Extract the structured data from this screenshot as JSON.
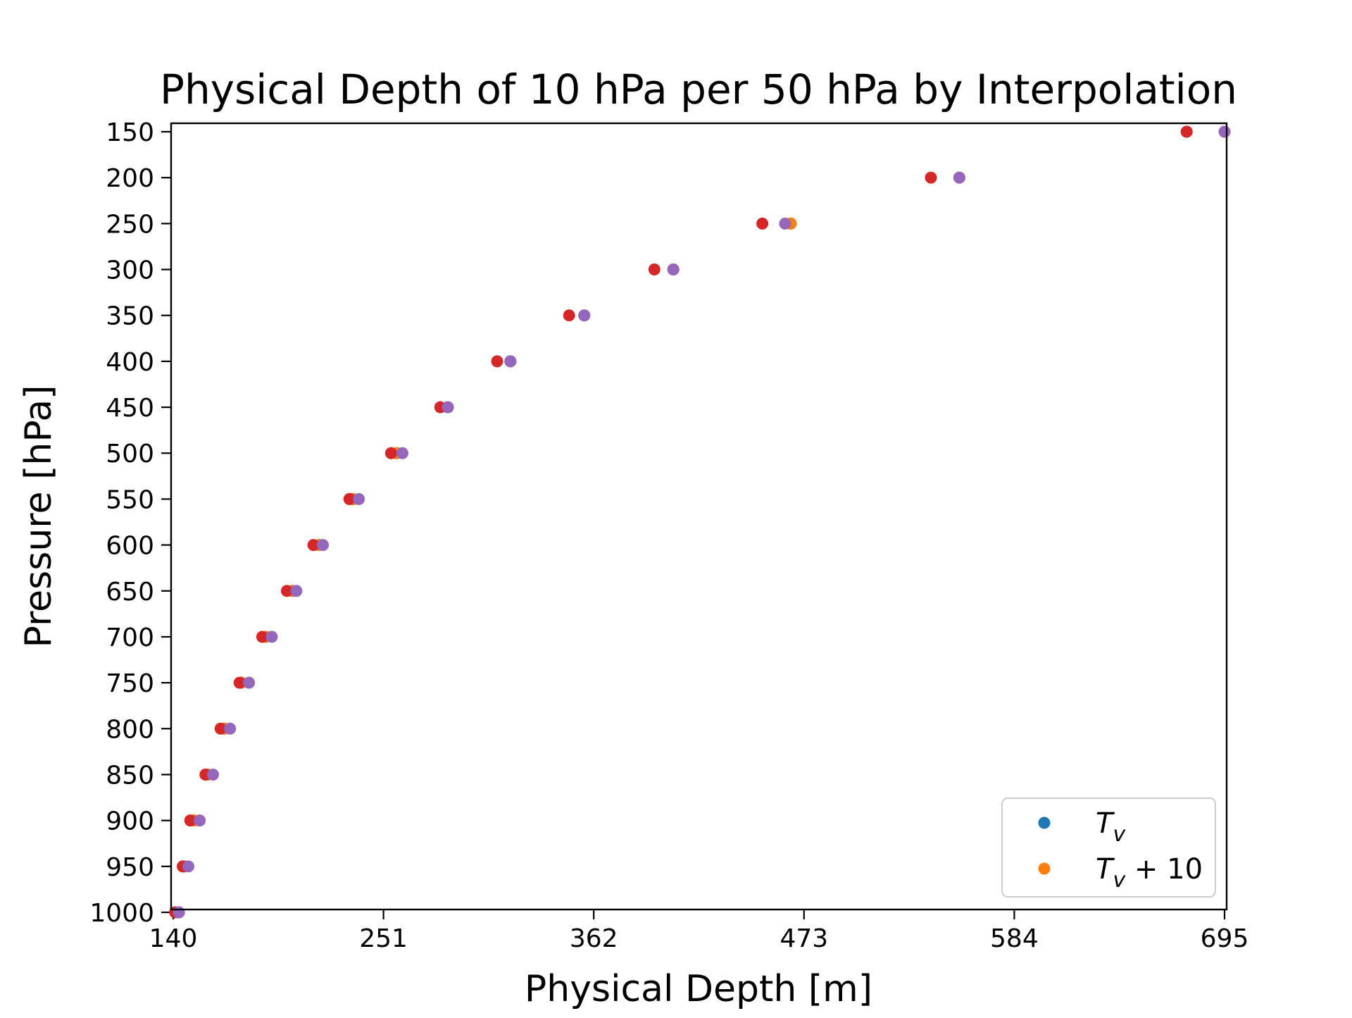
{
  "chart_data": {
    "type": "scatter",
    "title": "Physical Depth of 10 hPa per 50 hPa by Interpolation",
    "xlabel": "Physical Depth [m]",
    "ylabel": "Pressure [hPa]",
    "xlim": [
      140,
      695
    ],
    "ylim": [
      1000,
      150
    ],
    "y_inverted": true,
    "x_ticks": [
      "140",
      "251",
      "362",
      "473",
      "584",
      "695"
    ],
    "y_ticks": [
      "150",
      "200",
      "250",
      "300",
      "350",
      "400",
      "450",
      "500",
      "550",
      "600",
      "650",
      "700",
      "750",
      "800",
      "850",
      "900",
      "950",
      "1000"
    ],
    "pressure": [
      150,
      200,
      250,
      300,
      350,
      400,
      450,
      500,
      550,
      600,
      650,
      700,
      750,
      800,
      850,
      900,
      950,
      1000
    ],
    "grid": false,
    "legend_position": "lower right",
    "legend": {
      "entries": [
        {
          "label": "T",
          "subscript": "v",
          "suffix": "",
          "color": "#1f77b4"
        },
        {
          "label": "T",
          "subscript": "v",
          "suffix": " + 10",
          "color": "#ff7f0e"
        }
      ]
    },
    "series": [
      {
        "name": "T_v",
        "color": "#1f77b4",
        "x": [
          675,
          555,
          466,
          404,
          357,
          318,
          285,
          258,
          235,
          217,
          203,
          189,
          176,
          167,
          158,
          151,
          146,
          143
        ]
      },
      {
        "name": "T_v + 10",
        "color": "#ff7f0e",
        "x": [
          695,
          555,
          466,
          404,
          357,
          318,
          285,
          258,
          235,
          217,
          203,
          189,
          176,
          167,
          158,
          151,
          146,
          143
        ]
      },
      {
        "name": "",
        "color": "#d62728",
        "x": [
          675,
          540,
          451,
          394,
          349,
          311,
          281,
          255,
          233,
          214,
          200,
          187,
          175,
          165,
          157,
          149,
          145,
          141
        ]
      },
      {
        "name": "",
        "color": "#9467bd",
        "x": [
          695,
          555,
          463,
          404,
          357,
          318,
          285,
          261,
          238,
          219,
          205,
          192,
          180,
          170,
          161,
          154,
          148,
          143
        ]
      }
    ]
  }
}
